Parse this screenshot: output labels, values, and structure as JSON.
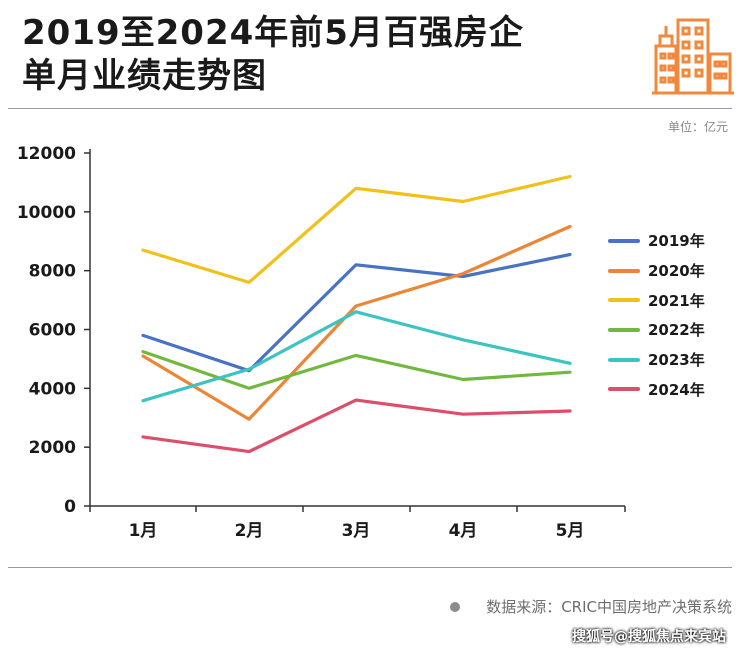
{
  "header": {
    "title_line1": "2019至2024年前5月百强房企",
    "title_line2": "单月业绩走势图",
    "logo_icon": "city-buildings-icon",
    "logo_color": "#f0883e"
  },
  "unit_label": "单位：亿元",
  "source": {
    "text": "数据来源：CRIC中国房地产决策系统"
  },
  "watermark": "搜狐号@搜狐焦点来宾站",
  "chart_data": {
    "type": "line",
    "categories": [
      "1月",
      "2月",
      "3月",
      "4月",
      "5月"
    ],
    "ylim": [
      0,
      12000
    ],
    "yticks": [
      "0",
      "2000",
      "4000",
      "6000",
      "8000",
      "10000",
      "12000"
    ],
    "grid": false,
    "legend_position": "right",
    "series": [
      {
        "name": "2019年",
        "color": "#4a72c4",
        "values": [
          5800,
          4600,
          8200,
          7800,
          8550
        ]
      },
      {
        "name": "2020年",
        "color": "#ec8535",
        "values": [
          5100,
          2950,
          6800,
          7900,
          9500
        ]
      },
      {
        "name": "2021年",
        "color": "#f2c019",
        "values": [
          8700,
          7600,
          10800,
          10350,
          11200
        ]
      },
      {
        "name": "2022年",
        "color": "#72b83e",
        "values": [
          5250,
          4000,
          5120,
          4300,
          4550
        ]
      },
      {
        "name": "2023年",
        "color": "#3cc4c2",
        "values": [
          3580,
          4650,
          6600,
          5650,
          4850
        ]
      },
      {
        "name": "2024年",
        "color": "#dc4f6a",
        "values": [
          2350,
          1850,
          3600,
          3120,
          3230
        ]
      }
    ]
  }
}
